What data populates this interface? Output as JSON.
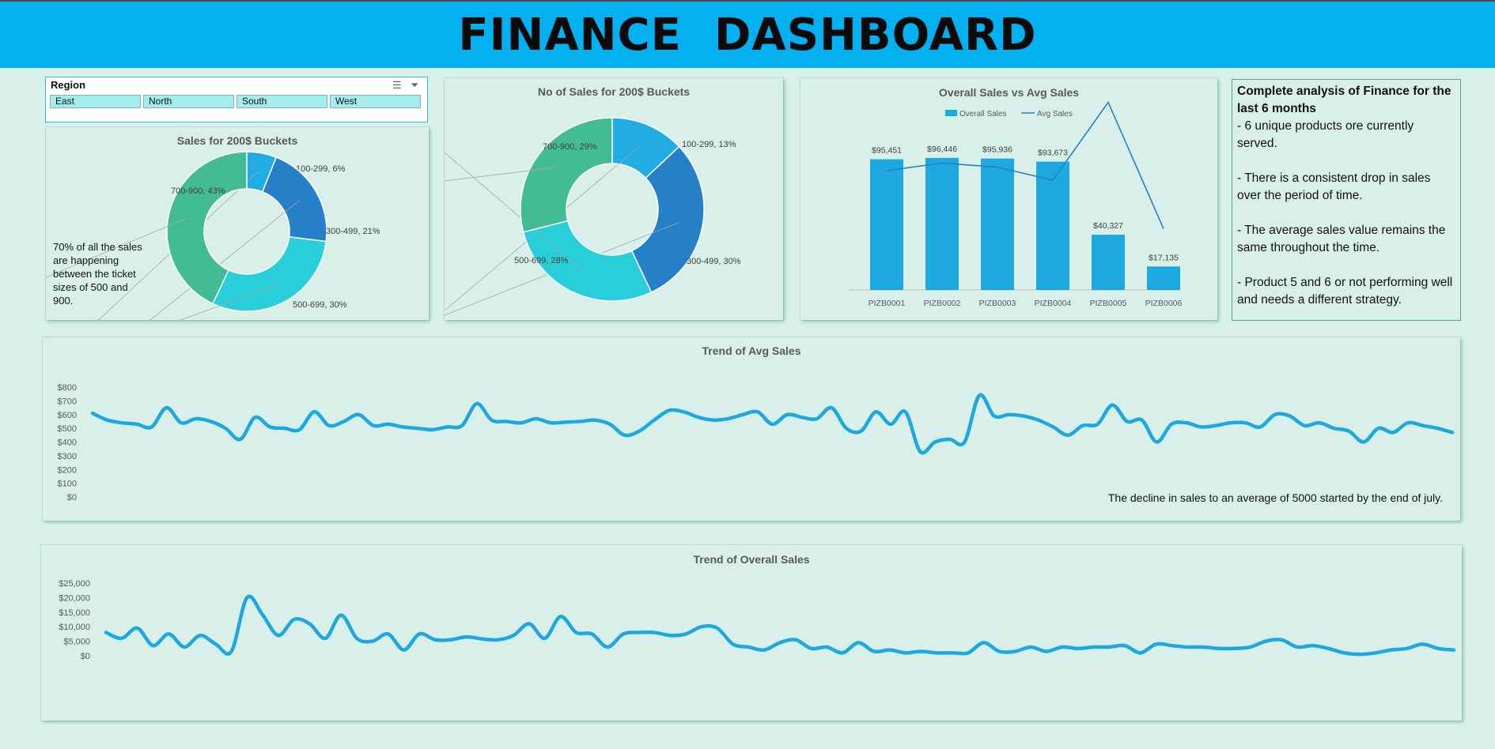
{
  "dashboard": {
    "title": "FINANCE  DASHBOARD"
  },
  "slicer": {
    "title": "Region",
    "options": [
      "East",
      "North",
      "South",
      "West"
    ]
  },
  "notes": {
    "pie_note": "70% of all the sales are happening between the ticket sizes of 500 and 900.",
    "avg_trend_note": "The decline in sales to an average of 5000 started by the end of july."
  },
  "analysis": {
    "title": "Complete analysis of Finance for the last 6 months",
    "points": [
      "- 6 unique products ore currently served.",
      "- There is a consistent drop in sales over the period of time.",
      "- The average sales value remains the same throughout the time.",
      "- Product 5 and 6 or not performing well and needs a different strategy."
    ]
  },
  "colors": {
    "header": "#05b0f0",
    "background": "#d8f0e9",
    "line": "#1ea8e0"
  },
  "chart_data": [
    {
      "type": "pie",
      "title": "Sales for 200$ Buckets",
      "style": "donut",
      "categories": [
        "100-299",
        "300-499",
        "500-699",
        "700-900"
      ],
      "values": [
        6,
        21,
        30,
        43
      ],
      "labels": [
        "100-299, 6%",
        "300-499, 21%",
        "500-699, 30%",
        "700-900, 43%"
      ],
      "colors": [
        "#22ace4",
        "#2580c8",
        "#28cfd8",
        "#43bc96"
      ]
    },
    {
      "type": "pie",
      "title": "No of Sales for 200$ Buckets",
      "style": "donut",
      "categories": [
        "100-299",
        "300-499",
        "500-699",
        "700-900"
      ],
      "values": [
        13,
        30,
        28,
        29
      ],
      "labels": [
        "100-299, 13%",
        "300-499, 30%",
        "500-699, 28%",
        "700-900, 29%"
      ],
      "colors": [
        "#22ace4",
        "#2580c8",
        "#28cfd8",
        "#43bc96"
      ]
    },
    {
      "type": "bar",
      "title": "Overall Sales vs Avg Sales",
      "categories": [
        "PIZB0001",
        "PIZB0002",
        "PIZB0003",
        "PIZB0004",
        "PIZB0005",
        "PIZB0006"
      ],
      "series": [
        {
          "name": "Overall Sales",
          "kind": "bar",
          "values": [
            95451,
            96446,
            95936,
            93673,
            40327,
            17135
          ]
        },
        {
          "name": "Avg Sales",
          "kind": "line",
          "values": [
            530,
            556,
            542,
            497,
            765,
            330
          ]
        }
      ],
      "data_labels": [
        "$95,451",
        "$96,446",
        "$95,936",
        "$93,673",
        "$40,327",
        "$17,135"
      ],
      "legend": "top-center"
    },
    {
      "type": "line",
      "title": "Trend of Avg Sales",
      "ylim": [
        0,
        800
      ],
      "yticks": [
        0,
        100,
        200,
        300,
        400,
        500,
        600,
        700,
        800
      ],
      "ytick_labels": [
        "$0",
        "$100",
        "$200",
        "$300",
        "$400",
        "$500",
        "$600",
        "$700",
        "$800"
      ],
      "values": [
        610,
        560,
        540,
        530,
        510,
        650,
        540,
        570,
        550,
        500,
        420,
        580,
        510,
        500,
        490,
        620,
        520,
        550,
        600,
        520,
        530,
        510,
        500,
        490,
        510,
        520,
        680,
        560,
        550,
        540,
        570,
        540,
        545,
        550,
        560,
        530,
        450,
        480,
        560,
        630,
        620,
        580,
        560,
        570,
        600,
        620,
        530,
        600,
        580,
        570,
        650,
        500,
        480,
        620,
        530,
        620,
        330,
        400,
        420,
        400,
        740,
        590,
        600,
        590,
        560,
        510,
        450,
        520,
        530,
        670,
        550,
        560,
        400,
        530,
        540,
        510,
        520,
        540,
        540,
        510,
        600,
        590,
        520,
        540,
        500,
        480,
        400,
        500,
        470,
        540,
        520,
        500,
        470
      ]
    },
    {
      "type": "line",
      "title": "Trend of Overall Sales",
      "ylim": [
        0,
        25000
      ],
      "yticks": [
        0,
        5000,
        10000,
        15000,
        20000,
        25000
      ],
      "ytick_labels": [
        "$0",
        "$5,000",
        "$10,000",
        "$15,000",
        "$20,000",
        "$25,000"
      ],
      "values": [
        8000,
        6000,
        9500,
        3500,
        7500,
        3000,
        7000,
        4000,
        1500,
        20000,
        14000,
        7000,
        12500,
        11000,
        6000,
        14000,
        6000,
        5000,
        7500,
        2000,
        7500,
        5500,
        5500,
        6500,
        5800,
        5500,
        7000,
        11000,
        6000,
        13500,
        8000,
        7500,
        3000,
        7500,
        8000,
        8000,
        7000,
        7500,
        10000,
        9500,
        4000,
        3000,
        2000,
        4500,
        5500,
        2500,
        3000,
        1000,
        4500,
        1500,
        2000,
        1000,
        1500,
        1000,
        1000,
        1000,
        4500,
        1500,
        1500,
        3000,
        1500,
        3000,
        2500,
        3000,
        3000,
        3500,
        1000,
        4000,
        3500,
        3000,
        3000,
        2500,
        2500,
        3000,
        5000,
        5500,
        3000,
        3500,
        2500,
        1000,
        500,
        1000,
        2000,
        2500,
        4000,
        2500,
        2000
      ]
    }
  ]
}
